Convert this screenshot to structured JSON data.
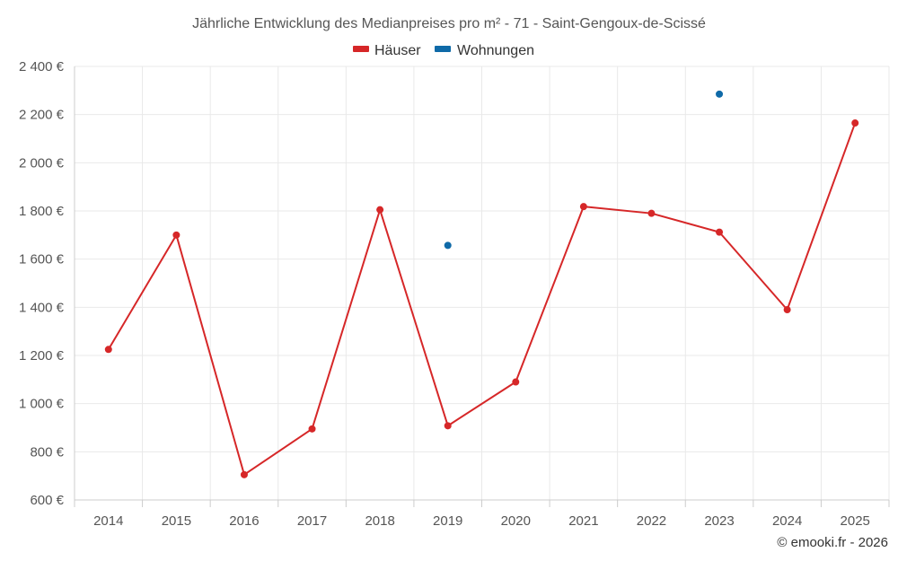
{
  "chart_data": {
    "type": "line",
    "title": "Jährliche Entwicklung des Medianpreises pro m² - 71 - Saint-Gengoux-de-Scissé",
    "categories": [
      "2014",
      "2015",
      "2016",
      "2017",
      "2018",
      "2019",
      "2020",
      "2021",
      "2022",
      "2023",
      "2024",
      "2025"
    ],
    "series": [
      {
        "name": "Häuser",
        "color": "#d62728",
        "values": [
          1225,
          1700,
          705,
          895,
          1805,
          908,
          1090,
          1818,
          1790,
          1712,
          1390,
          2165
        ]
      },
      {
        "name": "Wohnungen",
        "color": "#0f6aa8",
        "values": [
          null,
          null,
          null,
          null,
          null,
          1657,
          null,
          null,
          null,
          2285,
          null,
          null
        ]
      }
    ],
    "ylim": [
      600,
      2400
    ],
    "yticks": [
      600,
      800,
      1000,
      1200,
      1400,
      1600,
      1800,
      2000,
      2200,
      2400
    ],
    "ytick_labels": [
      "600 €",
      "800 €",
      "1 000 €",
      "1 200 €",
      "1 400 €",
      "1 600 €",
      "1 800 €",
      "2 000 €",
      "2 200 €",
      "2 400 €"
    ],
    "xlabel": "",
    "ylabel": "",
    "grid": true,
    "legend_position": "top-center"
  },
  "credit": "© emooki.fr - 2026"
}
